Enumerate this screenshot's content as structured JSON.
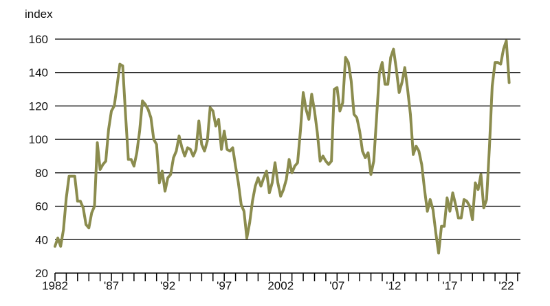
{
  "chart_data": {
    "type": "line",
    "ylabel": "index",
    "ylim": [
      20,
      160
    ],
    "yticks": [
      20,
      40,
      60,
      80,
      100,
      120,
      140,
      160
    ],
    "xlim": [
      1982.0,
      2023.25
    ],
    "xtick_labels": [
      {
        "x": 1982,
        "label": "1982"
      },
      {
        "x": 1987,
        "label": "'87"
      },
      {
        "x": 1992,
        "label": "'92"
      },
      {
        "x": 1997,
        "label": "'97"
      },
      {
        "x": 2002,
        "label": "2002"
      },
      {
        "x": 2007,
        "label": "'07"
      },
      {
        "x": 2012,
        "label": "'12"
      },
      {
        "x": 2017,
        "label": "'17"
      },
      {
        "x": 2022,
        "label": "'22"
      }
    ],
    "grid": "horizontal",
    "colors": {
      "series": "#8b8c4e",
      "axis": "#000000"
    },
    "series": [
      {
        "name": "",
        "points": [
          [
            1982.0,
            36
          ],
          [
            1982.25,
            41
          ],
          [
            1982.5,
            36
          ],
          [
            1982.75,
            46
          ],
          [
            1983.0,
            65
          ],
          [
            1983.25,
            78
          ],
          [
            1983.5,
            78
          ],
          [
            1983.75,
            78
          ],
          [
            1984.0,
            63
          ],
          [
            1984.25,
            63
          ],
          [
            1984.5,
            59
          ],
          [
            1984.75,
            49
          ],
          [
            1985.0,
            47
          ],
          [
            1985.25,
            56
          ],
          [
            1985.5,
            60
          ],
          [
            1985.75,
            98
          ],
          [
            1986.0,
            82
          ],
          [
            1986.25,
            85
          ],
          [
            1986.5,
            87
          ],
          [
            1986.75,
            106
          ],
          [
            1987.0,
            117
          ],
          [
            1987.25,
            120
          ],
          [
            1987.5,
            132
          ],
          [
            1987.75,
            145
          ],
          [
            1988.0,
            144
          ],
          [
            1988.25,
            115
          ],
          [
            1988.5,
            88
          ],
          [
            1988.75,
            88
          ],
          [
            1989.0,
            84
          ],
          [
            1989.25,
            92
          ],
          [
            1989.5,
            105
          ],
          [
            1989.75,
            123
          ],
          [
            1990.0,
            121
          ],
          [
            1990.25,
            118
          ],
          [
            1990.5,
            113
          ],
          [
            1990.75,
            100
          ],
          [
            1991.0,
            97
          ],
          [
            1991.25,
            74
          ],
          [
            1991.5,
            81
          ],
          [
            1991.75,
            69
          ],
          [
            1992.0,
            77
          ],
          [
            1992.25,
            79
          ],
          [
            1992.5,
            89
          ],
          [
            1992.75,
            93
          ],
          [
            1993.0,
            102
          ],
          [
            1993.25,
            95
          ],
          [
            1993.5,
            90
          ],
          [
            1993.75,
            95
          ],
          [
            1994.0,
            94
          ],
          [
            1994.25,
            90
          ],
          [
            1994.5,
            94
          ],
          [
            1994.75,
            111
          ],
          [
            1995.0,
            97
          ],
          [
            1995.25,
            93
          ],
          [
            1995.5,
            99
          ],
          [
            1995.75,
            119
          ],
          [
            1996.0,
            117
          ],
          [
            1996.25,
            108
          ],
          [
            1996.5,
            112
          ],
          [
            1996.75,
            94
          ],
          [
            1997.0,
            105
          ],
          [
            1997.25,
            94
          ],
          [
            1997.5,
            93
          ],
          [
            1997.75,
            95
          ],
          [
            1998.0,
            84
          ],
          [
            1998.25,
            74
          ],
          [
            1998.5,
            61
          ],
          [
            1998.75,
            57
          ],
          [
            1999.0,
            41
          ],
          [
            1999.25,
            50
          ],
          [
            1999.5,
            63
          ],
          [
            1999.75,
            72
          ],
          [
            2000.0,
            77
          ],
          [
            2000.25,
            72
          ],
          [
            2000.5,
            77
          ],
          [
            2000.75,
            81
          ],
          [
            2001.0,
            68
          ],
          [
            2001.25,
            74
          ],
          [
            2001.5,
            86
          ],
          [
            2001.75,
            74
          ],
          [
            2002.0,
            66
          ],
          [
            2002.25,
            70
          ],
          [
            2002.5,
            76
          ],
          [
            2002.75,
            88
          ],
          [
            2003.0,
            80
          ],
          [
            2003.25,
            84
          ],
          [
            2003.5,
            86
          ],
          [
            2003.75,
            105
          ],
          [
            2004.0,
            128
          ],
          [
            2004.25,
            118
          ],
          [
            2004.5,
            112
          ],
          [
            2004.75,
            127
          ],
          [
            2005.0,
            117
          ],
          [
            2005.25,
            104
          ],
          [
            2005.5,
            87
          ],
          [
            2005.75,
            90
          ],
          [
            2006.0,
            87
          ],
          [
            2006.25,
            85
          ],
          [
            2006.5,
            87
          ],
          [
            2006.75,
            130
          ],
          [
            2007.0,
            131
          ],
          [
            2007.25,
            117
          ],
          [
            2007.5,
            122
          ],
          [
            2007.75,
            149
          ],
          [
            2008.0,
            146
          ],
          [
            2008.25,
            135
          ],
          [
            2008.5,
            115
          ],
          [
            2008.75,
            113
          ],
          [
            2009.0,
            105
          ],
          [
            2009.25,
            93
          ],
          [
            2009.5,
            89
          ],
          [
            2009.75,
            92
          ],
          [
            2010.0,
            79
          ],
          [
            2010.25,
            87
          ],
          [
            2010.5,
            113
          ],
          [
            2010.75,
            140
          ],
          [
            2011.0,
            146
          ],
          [
            2011.25,
            133
          ],
          [
            2011.5,
            133
          ],
          [
            2011.75,
            149
          ],
          [
            2012.0,
            154
          ],
          [
            2012.25,
            142
          ],
          [
            2012.5,
            128
          ],
          [
            2012.75,
            134
          ],
          [
            2013.0,
            143
          ],
          [
            2013.25,
            130
          ],
          [
            2013.5,
            115
          ],
          [
            2013.75,
            91
          ],
          [
            2014.0,
            96
          ],
          [
            2014.25,
            93
          ],
          [
            2014.5,
            85
          ],
          [
            2014.75,
            70
          ],
          [
            2015.0,
            57
          ],
          [
            2015.25,
            64
          ],
          [
            2015.5,
            58
          ],
          [
            2015.75,
            44
          ],
          [
            2016.0,
            32
          ],
          [
            2016.25,
            48
          ],
          [
            2016.5,
            48
          ],
          [
            2016.75,
            65
          ],
          [
            2017.0,
            57
          ],
          [
            2017.25,
            68
          ],
          [
            2017.5,
            61
          ],
          [
            2017.75,
            53
          ],
          [
            2018.0,
            53
          ],
          [
            2018.25,
            64
          ],
          [
            2018.5,
            63
          ],
          [
            2018.75,
            60
          ],
          [
            2019.0,
            52
          ],
          [
            2019.25,
            74
          ],
          [
            2019.5,
            70
          ],
          [
            2019.75,
            79
          ],
          [
            2020.0,
            59
          ],
          [
            2020.25,
            64
          ],
          [
            2020.5,
            95
          ],
          [
            2020.75,
            132
          ],
          [
            2021.0,
            146
          ],
          [
            2021.25,
            146
          ],
          [
            2021.5,
            145
          ],
          [
            2021.75,
            154
          ],
          [
            2022.0,
            159
          ],
          [
            2022.25,
            134
          ]
        ]
      }
    ]
  }
}
